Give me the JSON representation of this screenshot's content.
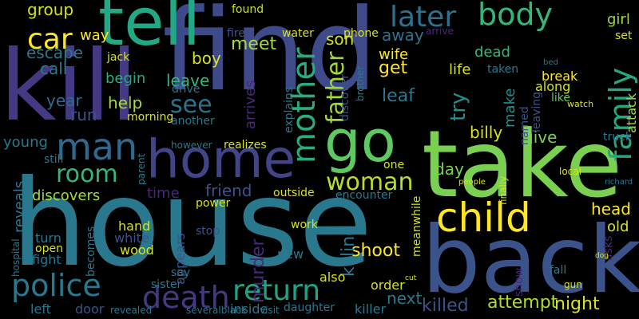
{
  "words": [
    "kill",
    "find",
    "house",
    "take",
    "back",
    "tell",
    "home",
    "go",
    "man",
    "child",
    "police",
    "death",
    "return",
    "room",
    "woman",
    "later",
    "body",
    "car",
    "mother",
    "father",
    "family",
    "shoot",
    "killed",
    "attempt",
    "night",
    "murder",
    "killing",
    "see",
    "help",
    "leave",
    "boy",
    "escape",
    "call",
    "run",
    "year",
    "begin",
    "group",
    "way",
    "meet",
    "found",
    "son",
    "away",
    "wife",
    "get",
    "leaf",
    "try",
    "make",
    "dead",
    "life",
    "give",
    "billy",
    "day",
    "head",
    "old",
    "girl",
    "break",
    "along",
    "like",
    "fight",
    "young",
    "discovers",
    "reveals",
    "still",
    "turn",
    "open",
    "hand",
    "white",
    "wood",
    "time",
    "friend",
    "power",
    "stop",
    "appears",
    "becomes",
    "sister",
    "say",
    "also",
    "order",
    "next",
    "daughter",
    "killer",
    "inside",
    "left",
    "door",
    "new",
    "work",
    "outside",
    "realizes",
    "however",
    "another",
    "morning",
    "drive",
    "arrives",
    "explains",
    "discover",
    "fire",
    "water",
    "phone",
    "jack",
    "one",
    "encounter",
    "meanwhile",
    "named",
    "leaving",
    "attack",
    "truck",
    "set",
    "taken",
    "parent",
    "hospital",
    "fall",
    "show",
    "asks",
    "local",
    "richard",
    "revealed",
    "severalblack",
    "visit",
    "watch",
    "arrive",
    "bed",
    "brother",
    "finally",
    "people",
    "gun",
    "dog",
    "cut"
  ]
}
